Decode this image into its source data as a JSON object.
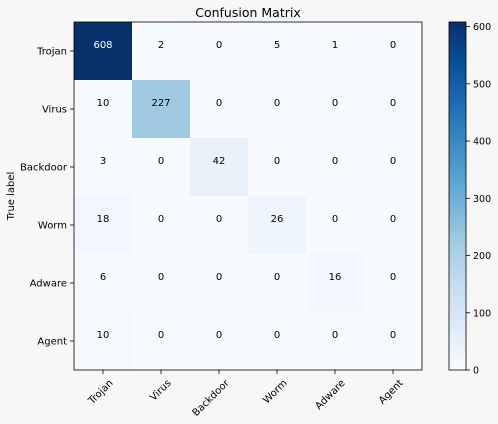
{
  "chart_data": {
    "type": "heatmap",
    "title": "Confusion Matrix",
    "ylabel": "True label",
    "xlabel": "",
    "x_categories": [
      "Trojan",
      "Virus",
      "Backdoor",
      "Worm",
      "Adware",
      "Agent"
    ],
    "y_categories": [
      "Trojan",
      "Virus",
      "Backdoor",
      "Worm",
      "Adware",
      "Agent"
    ],
    "values": [
      [
        608,
        2,
        0,
        5,
        1,
        0
      ],
      [
        10,
        227,
        0,
        0,
        0,
        0
      ],
      [
        3,
        0,
        42,
        0,
        0,
        0
      ],
      [
        18,
        0,
        0,
        26,
        0,
        0
      ],
      [
        6,
        0,
        0,
        0,
        16,
        0
      ],
      [
        10,
        0,
        0,
        0,
        0,
        0
      ]
    ],
    "colormap": "Blues",
    "color_range": [
      0,
      608
    ],
    "colorbar_ticks": [
      0,
      100,
      200,
      300,
      400,
      500,
      600
    ]
  }
}
